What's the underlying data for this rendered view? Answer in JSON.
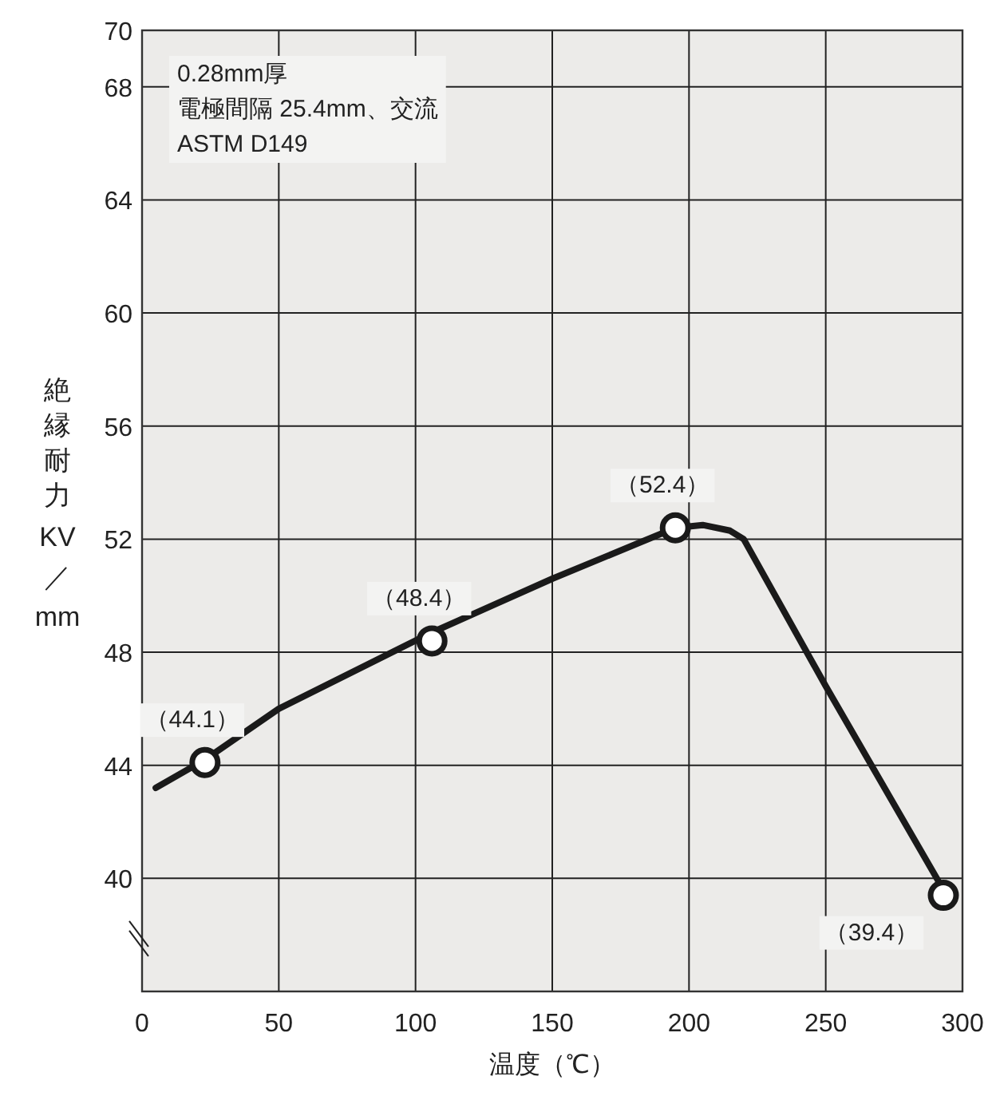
{
  "chart_data": {
    "type": "line",
    "xlabel": "温度（℃）",
    "ylabel": "絶縁耐力\nKV\n／\nmm",
    "xlim": [
      0,
      300
    ],
    "ylim": [
      36,
      70
    ],
    "xticks": [
      0,
      50,
      100,
      150,
      200,
      250,
      300
    ],
    "yticks": [
      40,
      44,
      48,
      52,
      56,
      60,
      64,
      68,
      70
    ],
    "grid": true,
    "annotations": [
      "0.28mm厚",
      "電極間隔 25.4mm、交流",
      "ASTM D149"
    ],
    "series": [
      {
        "type": "line",
        "color": "#1a1a1a",
        "marker": "none",
        "x": [
          5,
          23,
          50,
          106,
          150,
          180,
          195,
          205,
          215,
          220,
          250,
          293
        ],
        "values": [
          43.2,
          44.2,
          46.0,
          48.7,
          50.6,
          51.8,
          52.4,
          52.5,
          52.3,
          52.0,
          46.8,
          39.6
        ]
      },
      {
        "type": "scatter",
        "color": "#1a1a1a",
        "marker": "circle",
        "x": [
          23,
          106,
          195,
          293
        ],
        "values": [
          44.1,
          48.4,
          52.4,
          39.4
        ],
        "value_labels": [
          "（44.1）",
          "（48.4）",
          "（52.4）",
          "（39.4）"
        ]
      }
    ]
  }
}
